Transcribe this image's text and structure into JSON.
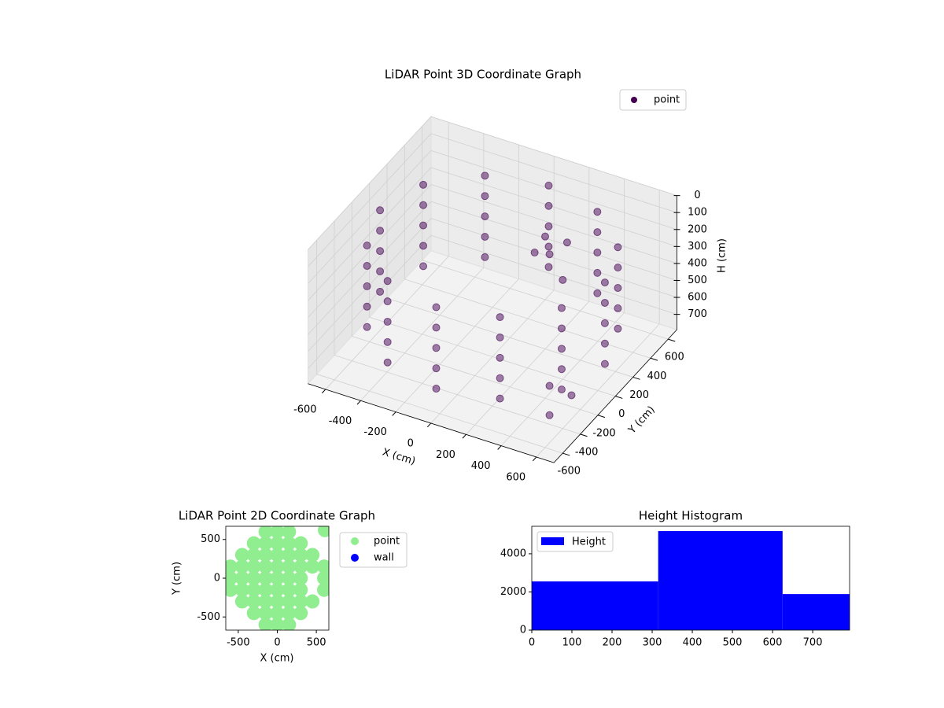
{
  "chart_data": [
    {
      "type": "scatter3d",
      "title": "LiDAR Point 3D Coordinate Graph",
      "xlabel": "X (cm)",
      "ylabel": "Y (cm)",
      "zlabel": "H (cm)",
      "xlim": [
        -700,
        700
      ],
      "ylim": [
        -700,
        700
      ],
      "zlim": [
        0,
        790
      ],
      "zinvert": true,
      "xticks": [
        -600,
        -400,
        -200,
        0,
        200,
        400,
        600
      ],
      "yticks": [
        -600,
        -400,
        -200,
        0,
        200,
        400,
        600
      ],
      "zticks": [
        0,
        100,
        200,
        300,
        400,
        500,
        600,
        700
      ],
      "grid": true,
      "legend": "upper right",
      "series": [
        {
          "name": "point",
          "color": "#440154",
          "x": [
            640,
            554,
            320,
            0,
            -320,
            -554,
            -640,
            -554,
            -320,
            0,
            320,
            554,
            640,
            554,
            320,
            0,
            -320,
            -554,
            -640,
            -554,
            -320,
            0,
            320,
            554,
            640,
            554,
            320,
            0,
            -320,
            -554,
            -640,
            -554,
            -320,
            0,
            320,
            554,
            640,
            554,
            320,
            0,
            -320,
            -554,
            -640,
            -554,
            -320,
            0,
            320,
            554,
            640,
            554,
            320,
            0,
            -320,
            -554,
            -640,
            -554,
            -320,
            0,
            320,
            554,
            150,
            200,
            250,
            100,
            300,
            500,
            600,
            550
          ],
          "y": [
            0,
            320,
            554,
            640,
            554,
            320,
            0,
            -320,
            -554,
            -640,
            -554,
            -320,
            0,
            320,
            554,
            640,
            554,
            320,
            0,
            -320,
            -554,
            -640,
            -554,
            -320,
            0,
            320,
            554,
            640,
            554,
            320,
            0,
            -320,
            -554,
            -640,
            -554,
            -320,
            0,
            320,
            554,
            640,
            554,
            320,
            0,
            -320,
            -554,
            -640,
            -554,
            -320,
            0,
            320,
            554,
            640,
            554,
            320,
            0,
            -320,
            -554,
            -640,
            -554,
            -320,
            300,
            250,
            350,
            280,
            200,
            -350,
            -300,
            -450
          ],
          "z": [
            140,
            140,
            140,
            140,
            140,
            140,
            140,
            140,
            140,
            140,
            140,
            140,
            260,
            260,
            260,
            260,
            260,
            260,
            260,
            260,
            260,
            260,
            260,
            260,
            380,
            380,
            380,
            380,
            380,
            380,
            380,
            380,
            380,
            380,
            380,
            380,
            500,
            500,
            500,
            500,
            500,
            500,
            500,
            500,
            500,
            500,
            500,
            500,
            620,
            620,
            620,
            620,
            620,
            620,
            620,
            620,
            620,
            620,
            620,
            620,
            200,
            260,
            230,
            300,
            350,
            600,
            650,
            700
          ]
        }
      ]
    },
    {
      "type": "scatter",
      "title": "LiDAR Point 2D Coordinate Graph",
      "xlabel": "X (cm)",
      "ylabel": "Y (cm)",
      "xlim": [
        -660,
        660
      ],
      "ylim": [
        -670,
        670
      ],
      "xticks": [
        -500,
        0,
        500
      ],
      "yticks": [
        -500,
        0,
        500
      ],
      "legend": "outside right",
      "series": [
        {
          "name": "point",
          "color": "#90ee90",
          "x": [
            -150,
            0,
            150,
            -300,
            -150,
            0,
            150,
            300,
            -450,
            -300,
            -150,
            0,
            150,
            300,
            450,
            -600,
            -450,
            -300,
            -150,
            0,
            150,
            300,
            450,
            600,
            -600,
            -450,
            -300,
            -150,
            0,
            150,
            300,
            600,
            -600,
            -450,
            -300,
            -150,
            0,
            150,
            300,
            600,
            -450,
            -300,
            -150,
            0,
            150,
            300,
            450,
            -300,
            -150,
            0,
            150,
            300,
            -150,
            0,
            150,
            610
          ],
          "y": [
            600,
            600,
            600,
            450,
            450,
            450,
            450,
            450,
            300,
            300,
            300,
            300,
            300,
            300,
            300,
            150,
            150,
            150,
            150,
            150,
            150,
            150,
            150,
            150,
            0,
            0,
            0,
            0,
            0,
            0,
            0,
            0,
            -150,
            -150,
            -150,
            -150,
            -150,
            -150,
            -150,
            -150,
            -300,
            -300,
            -300,
            -300,
            -300,
            -300,
            -300,
            -450,
            -450,
            -450,
            -450,
            -450,
            -600,
            -600,
            -600,
            620
          ]
        },
        {
          "name": "wall",
          "color": "#0000ff",
          "x": [],
          "y": []
        }
      ]
    },
    {
      "type": "histogram",
      "title": "Height Histogram",
      "bins": [
        0,
        315,
        625,
        792
      ],
      "counts": [
        2550,
        5190,
        1890
      ],
      "series_name": "Height",
      "color": "#0000ff",
      "xlim": [
        0,
        792
      ],
      "ylim": [
        0,
        5440
      ],
      "xticks": [
        0,
        100,
        200,
        300,
        400,
        500,
        600,
        700
      ],
      "yticks": [
        0,
        2000,
        4000
      ],
      "legend": "upper left"
    }
  ]
}
